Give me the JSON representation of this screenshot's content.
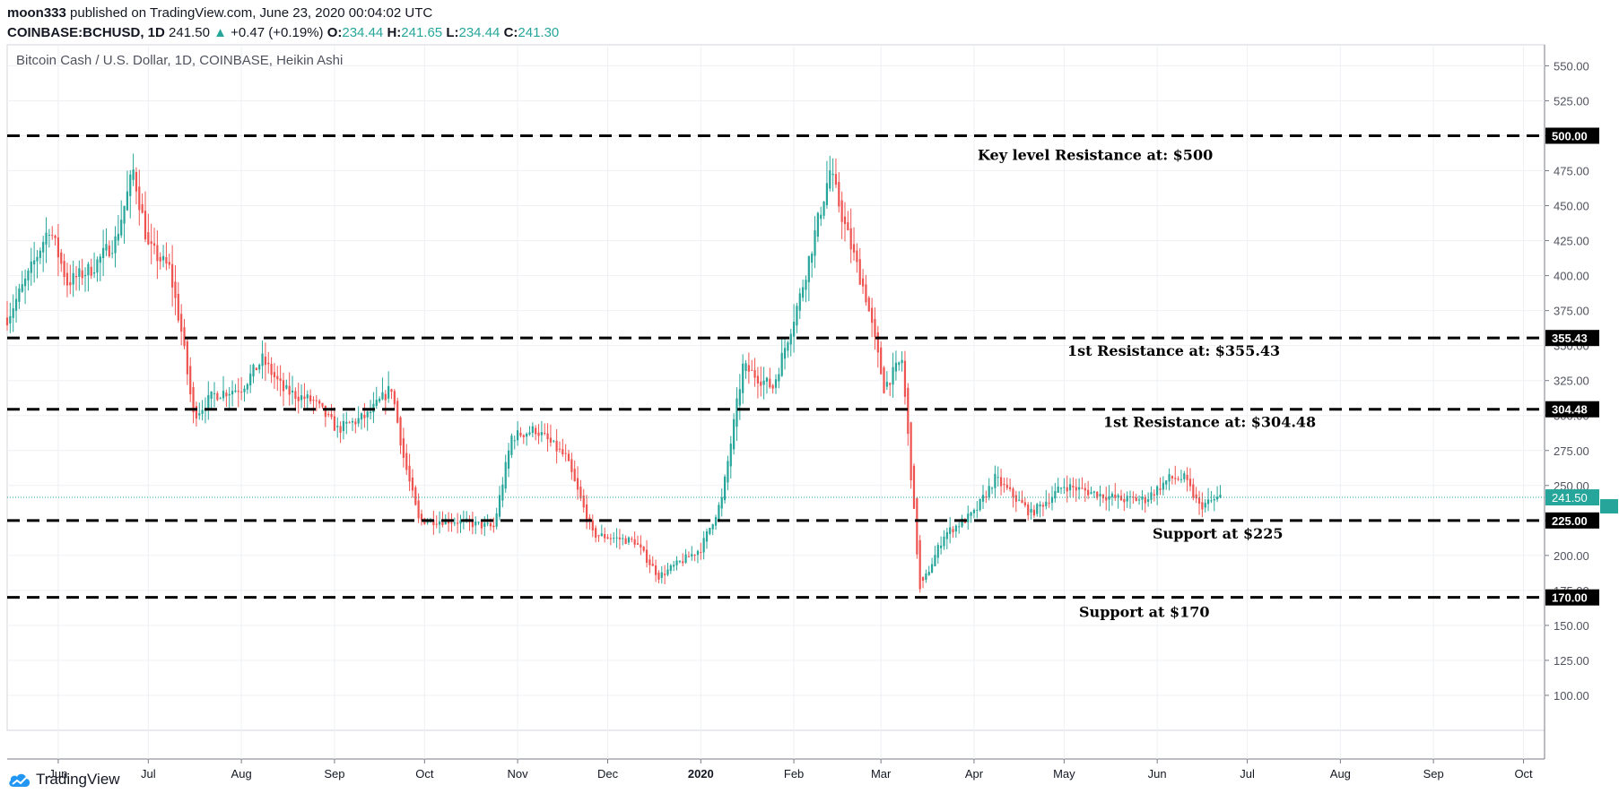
{
  "header": {
    "author": "moon333",
    "published_text": "published on TradingView.com, June 23, 2020 00:04:02 UTC",
    "symbol": "COINBASE:BCHUSD, 1D",
    "last": "241.50",
    "change": "+0.47 (+0.19%)",
    "open_label": "O:",
    "open": "234.44",
    "high_label": "H:",
    "high": "241.65",
    "low_label": "L:",
    "low": "234.44",
    "close_label": "C:",
    "close": "241.30"
  },
  "footer": {
    "brand": "TradingView",
    "logo_icon": "tradingview-cloud-icon"
  },
  "chart_data": {
    "type": "candlestick",
    "title": "Bitcoin Cash / U.S. Dollar, 1D, COINBASE, Heikin Ashi",
    "ylim": [
      75,
      565
    ],
    "y_ticks": [
      550,
      525,
      500,
      475,
      450,
      425,
      400,
      375,
      350,
      325,
      300,
      275,
      250,
      225,
      200,
      175,
      150,
      125,
      100
    ],
    "y_tick_labels": [
      "550.00",
      "525.00",
      "500.00",
      "475.00",
      "450.00",
      "425.00",
      "400.00",
      "375.00",
      "350.00",
      "325.00",
      "300.00",
      "275.00",
      "250.00",
      "225.00",
      "200.00",
      "175.00",
      "150.00",
      "125.00",
      "100.00"
    ],
    "x_labels": [
      {
        "label": "Jun",
        "date": "2019-06-01"
      },
      {
        "label": "Jul",
        "date": "2019-07-01"
      },
      {
        "label": "Aug",
        "date": "2019-08-01"
      },
      {
        "label": "Sep",
        "date": "2019-09-01"
      },
      {
        "label": "Oct",
        "date": "2019-10-01"
      },
      {
        "label": "Nov",
        "date": "2019-11-01"
      },
      {
        "label": "Dec",
        "date": "2019-12-01"
      },
      {
        "label": "2020",
        "date": "2020-01-01"
      },
      {
        "label": "Feb",
        "date": "2020-02-01"
      },
      {
        "label": "Mar",
        "date": "2020-03-01"
      },
      {
        "label": "Apr",
        "date": "2020-04-01"
      },
      {
        "label": "May",
        "date": "2020-05-01"
      },
      {
        "label": "Jun",
        "date": "2020-06-01"
      },
      {
        "label": "Jul",
        "date": "2020-07-01"
      },
      {
        "label": "Aug",
        "date": "2020-08-01"
      },
      {
        "label": "Sep",
        "date": "2020-09-01"
      },
      {
        "label": "Oct",
        "date": "2020-10-01"
      }
    ],
    "x_range": [
      "2019-05-15",
      "2020-10-08"
    ],
    "grid": true,
    "up_color": "#26a69a",
    "down_color": "#ef5350",
    "price_path": [
      {
        "date": "2019-05-15",
        "close": 370
      },
      {
        "date": "2019-05-22",
        "close": 400
      },
      {
        "date": "2019-05-29",
        "close": 435
      },
      {
        "date": "2019-06-04",
        "close": 395
      },
      {
        "date": "2019-06-12",
        "close": 405
      },
      {
        "date": "2019-06-20",
        "close": 425
      },
      {
        "date": "2019-06-26",
        "close": 475
      },
      {
        "date": "2019-07-01",
        "close": 420
      },
      {
        "date": "2019-07-08",
        "close": 405
      },
      {
        "date": "2019-07-12",
        "close": 360
      },
      {
        "date": "2019-07-16",
        "close": 300
      },
      {
        "date": "2019-07-23",
        "close": 315
      },
      {
        "date": "2019-08-01",
        "close": 320
      },
      {
        "date": "2019-08-08",
        "close": 340
      },
      {
        "date": "2019-08-15",
        "close": 318
      },
      {
        "date": "2019-08-25",
        "close": 310
      },
      {
        "date": "2019-09-02",
        "close": 290
      },
      {
        "date": "2019-09-12",
        "close": 300
      },
      {
        "date": "2019-09-20",
        "close": 320
      },
      {
        "date": "2019-09-24",
        "close": 270
      },
      {
        "date": "2019-09-29",
        "close": 225
      },
      {
        "date": "2019-10-10",
        "close": 225
      },
      {
        "date": "2019-10-24",
        "close": 220
      },
      {
        "date": "2019-10-30",
        "close": 285
      },
      {
        "date": "2019-11-07",
        "close": 290
      },
      {
        "date": "2019-11-17",
        "close": 270
      },
      {
        "date": "2019-11-26",
        "close": 215
      },
      {
        "date": "2019-12-10",
        "close": 210
      },
      {
        "date": "2019-12-18",
        "close": 185
      },
      {
        "date": "2020-01-01",
        "close": 205
      },
      {
        "date": "2020-01-08",
        "close": 240
      },
      {
        "date": "2020-01-15",
        "close": 335
      },
      {
        "date": "2020-01-25",
        "close": 320
      },
      {
        "date": "2020-02-03",
        "close": 385
      },
      {
        "date": "2020-02-13",
        "close": 475
      },
      {
        "date": "2020-02-18",
        "close": 435
      },
      {
        "date": "2020-02-25",
        "close": 385
      },
      {
        "date": "2020-03-02",
        "close": 320
      },
      {
        "date": "2020-03-08",
        "close": 340
      },
      {
        "date": "2020-03-12",
        "close": 230
      },
      {
        "date": "2020-03-14",
        "close": 175
      },
      {
        "date": "2020-03-22",
        "close": 215
      },
      {
        "date": "2020-04-01",
        "close": 230
      },
      {
        "date": "2020-04-08",
        "close": 255
      },
      {
        "date": "2020-04-20",
        "close": 230
      },
      {
        "date": "2020-05-01",
        "close": 250
      },
      {
        "date": "2020-05-10",
        "close": 245
      },
      {
        "date": "2020-05-20",
        "close": 240
      },
      {
        "date": "2020-05-28",
        "close": 240
      },
      {
        "date": "2020-06-05",
        "close": 255
      },
      {
        "date": "2020-06-10",
        "close": 255
      },
      {
        "date": "2020-06-15",
        "close": 235
      },
      {
        "date": "2020-06-22",
        "close": 241.5
      }
    ],
    "horizontal_lines": [
      {
        "value": 500,
        "label": "500.00"
      },
      {
        "value": 355.43,
        "label": "355.43"
      },
      {
        "value": 304.48,
        "label": "304.48"
      },
      {
        "value": 225,
        "label": "225.00"
      },
      {
        "value": 170,
        "label": "170.00"
      }
    ],
    "annotations": [
      {
        "text": "Key level Resistance at: $500",
        "value": 500
      },
      {
        "text": "1st Resistance at: $355.43",
        "value": 355.43
      },
      {
        "text": "1st Resistance at: $304.48",
        "value": 304.48
      },
      {
        "text": "Support at $225",
        "value": 225
      },
      {
        "text": "Support at $170",
        "value": 170
      }
    ],
    "last_price": {
      "value": 241.5,
      "label": "241.50",
      "color": "#26a69a"
    }
  }
}
